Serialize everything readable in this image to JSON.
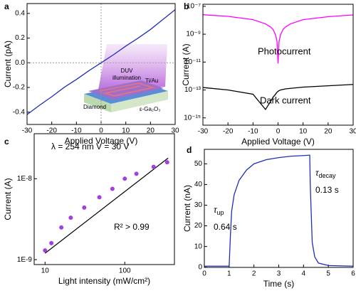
{
  "chart_data": [
    {
      "type": "line",
      "panel_label": "a",
      "xlabel": "Applied Voltage (V)",
      "ylabel": "Current (pA)",
      "color": "#1f2fb5",
      "x": [
        -30,
        -25,
        -20,
        -15,
        -10,
        -5,
        0,
        5,
        10,
        15,
        20,
        25,
        30
      ],
      "values": [
        -0.42,
        -0.345,
        -0.275,
        -0.2,
        -0.135,
        -0.065,
        0.0,
        0.065,
        0.135,
        0.2,
        0.27,
        0.35,
        0.43
      ],
      "xlim": [
        -30,
        30
      ],
      "xticks": [
        -30,
        -20,
        -10,
        0,
        10,
        20,
        30
      ],
      "ylim": [
        -0.5,
        0.48
      ],
      "yticks": [
        -0.4,
        -0.2,
        {
          "value": 0,
          "label": "0.0"
        },
        0.2,
        0.4
      ],
      "zero_lines": true,
      "inset": {
        "illumination": [
          "DUV",
          "illumination"
        ],
        "electrode": "Ti/Au",
        "substrate": "Diamond",
        "film": "ε-Ga₂O₃"
      }
    },
    {
      "type": "line",
      "panel_label": "b",
      "xlabel": "Applied Voltage (V)",
      "ylabel": "Current (A)",
      "ylog": true,
      "x": [
        -30,
        -20,
        -10,
        -5,
        -3,
        -2,
        -1,
        -0.4,
        0,
        0.4,
        1,
        2,
        3,
        5,
        10,
        20,
        30
      ],
      "series": [
        {
          "name": "Photocurrent",
          "color": "#ff00ff",
          "values": [
            2.5e-08,
            1.9e-08,
            1.1e-08,
            5.5e-09,
            3.3e-09,
            2.2e-09,
            9e-10,
            3e-10,
            8e-12,
            3e-10,
            9e-10,
            2.2e-09,
            3.3e-09,
            5.5e-09,
            1.1e-08,
            1.8e-08,
            2.4e-08
          ]
        },
        {
          "name": "Dark current",
          "color": "#000000",
          "values": [
            1.5e-13,
            1e-13,
            5e-14,
            4e-15,
            1.5e-14,
            3e-14,
            5e-14,
            7e-14,
            8e-14,
            9e-14,
            1e-13,
            1.1e-13,
            1.2e-13,
            1.3e-13,
            1.6e-13,
            2e-13,
            2.5e-13
          ]
        }
      ],
      "xlim": [
        -30,
        30
      ],
      "xticks": [
        -30,
        -20,
        -10,
        0,
        10,
        20,
        30
      ],
      "ylim": [
        3e-16,
        1.4e-07
      ],
      "yticks": [
        {
          "value": 1e-15,
          "label": "10⁻¹⁵"
        },
        {
          "value": 1e-13,
          "label": "10⁻¹³"
        },
        {
          "value": 1e-11,
          "label": "10⁻¹¹"
        },
        {
          "value": 1e-09,
          "label": "10⁻⁹"
        },
        {
          "value": 1e-07,
          "label": "10⁻⁷"
        }
      ]
    },
    {
      "type": "scatter",
      "panel_label": "c",
      "xlabel": "Light intensity (mW/cm²)",
      "ylabel": "Current (A)",
      "xlog": true,
      "ylog": true,
      "color": "#a040e0",
      "x": [
        10,
        12,
        16,
        21,
        31,
        48,
        70,
        100,
        140,
        230,
        340
      ],
      "values": [
        1.3e-09,
        1.6e-09,
        2.5e-09,
        3.3e-09,
        4.4e-09,
        5.9e-09,
        7.5e-09,
        1e-08,
        1.15e-08,
        1.4e-08,
        1.6e-08
      ],
      "fit": {
        "color": "#000000",
        "x": [
          10,
          350
        ],
        "values": [
          1.2e-09,
          1.8e-08
        ]
      },
      "xlim": [
        7.3,
        420
      ],
      "xticks": [
        10,
        100
      ],
      "ylim": [
        8.7e-10,
        3.6e-08
      ],
      "yticks": [
        {
          "value": 1e-09,
          "label": "1E-9"
        },
        {
          "value": 1e-08,
          "label": "1E-8"
        }
      ],
      "annotations": [
        "λ = 254 nm V = 30 V",
        "R² > 0.99"
      ]
    },
    {
      "type": "line",
      "panel_label": "d",
      "xlabel": "Time (s)",
      "ylabel": "Current (nA)",
      "color": "#1f2fb5",
      "x": [
        0,
        0.5,
        1.0,
        1.05,
        1.1,
        1.2,
        1.4,
        1.7,
        2.0,
        2.5,
        3.0,
        3.5,
        4.0,
        4.25,
        4.27,
        4.35,
        4.45,
        4.6,
        5.0,
        6.0
      ],
      "values": [
        0.5,
        0.5,
        0.5,
        15,
        27,
        35,
        42,
        47,
        50,
        52,
        53,
        53.7,
        54,
        54.2,
        40,
        12,
        5,
        2,
        0.8,
        0.5
      ],
      "xlim": [
        0,
        6
      ],
      "xticks": [
        0,
        1,
        2,
        3,
        4,
        5,
        6
      ],
      "ylim": [
        -0.1,
        57
      ],
      "yticks": [
        0,
        10,
        20,
        30,
        40,
        50
      ],
      "annotations": [
        {
          "symbol": "τ",
          "subscript": "up",
          "value": "0.64 s"
        },
        {
          "symbol": "τ",
          "subscript": "decay",
          "value": "0.13 s"
        }
      ]
    }
  ]
}
